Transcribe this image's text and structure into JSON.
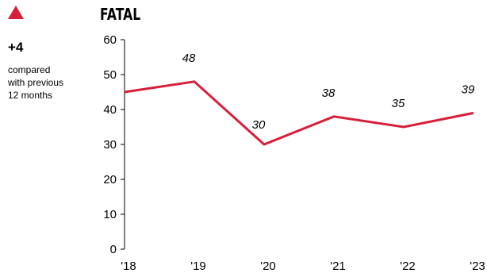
{
  "indicator": {
    "direction_icon": "triangle-up-icon",
    "color": "#d71f3a",
    "change": "+4",
    "compared_lines": [
      "compared",
      "with previous",
      "12 months"
    ]
  },
  "chart_data": {
    "type": "line",
    "title": "FATAL",
    "xlabel": "",
    "ylabel": "",
    "categories": [
      "'18",
      "'19",
      "'20",
      "'21",
      "'22",
      "'23"
    ],
    "series": [
      {
        "values": [
          45,
          48,
          30,
          38,
          35,
          39
        ],
        "color": "#d71f3a"
      }
    ],
    "data_labels": [
      "",
      "48",
      "30",
      "38",
      "35",
      "39"
    ],
    "ylim": [
      0,
      60
    ],
    "yticks": [
      0,
      10,
      20,
      30,
      40,
      50,
      60
    ],
    "grid": false,
    "legend": "none"
  }
}
